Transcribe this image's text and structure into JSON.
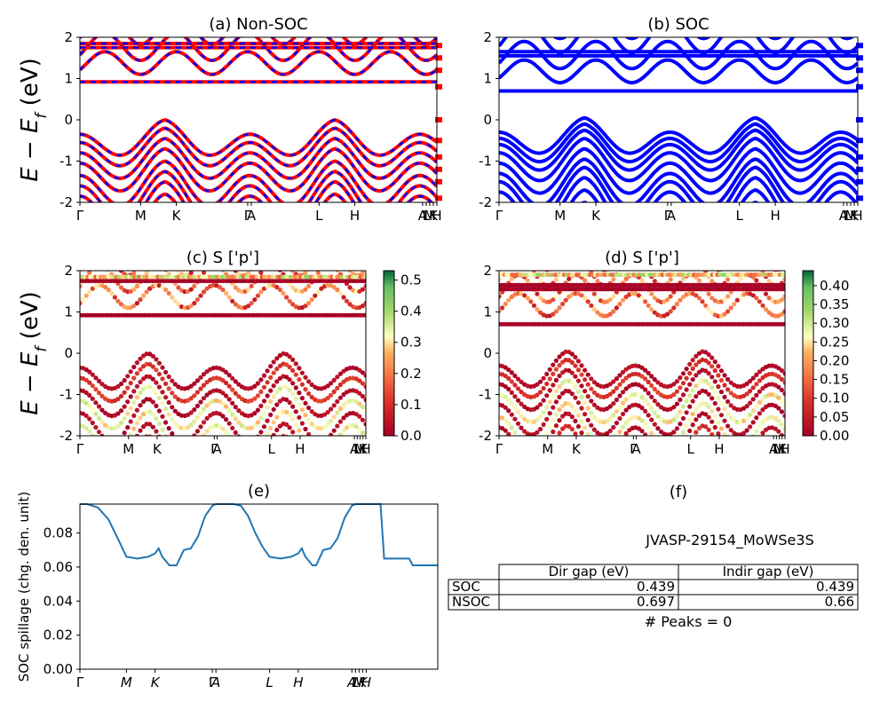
{
  "colors": {
    "nsoc": "#ff0000",
    "soc": "#0000ff",
    "dash": "#0000ff",
    "spill": "#1f77b4",
    "axis": "#000000",
    "frame": "#000000"
  },
  "chart_data": [
    {
      "id": "a",
      "type": "line",
      "title": "(a) Non-SOC",
      "ylabel": "E − E_f (eV)",
      "ylim": [
        -2,
        2
      ],
      "yticks": [
        -2,
        -1,
        0,
        1,
        2
      ],
      "kpath": [
        "Γ",
        "M",
        "K",
        "Γ",
        "A",
        "L",
        "H",
        "A",
        "L",
        "M",
        "K",
        "H"
      ],
      "kpos": [
        0.0,
        0.17,
        0.27,
        0.47,
        0.48,
        0.67,
        0.77,
        0.96,
        0.97,
        0.98,
        0.99,
        1.0
      ],
      "series": [
        {
          "values": []
        }
      ]
    },
    {
      "id": "b",
      "type": "line",
      "title": "(b) SOC",
      "ylim": [
        -2,
        2
      ],
      "yticks": [
        -2,
        -1,
        0,
        1,
        2
      ],
      "kpath": [
        "Γ",
        "M",
        "K",
        "Γ",
        "A",
        "L",
        "H",
        "A",
        "L",
        "M",
        "K",
        "H"
      ],
      "kpos": [
        0.0,
        0.17,
        0.27,
        0.47,
        0.48,
        0.67,
        0.77,
        0.96,
        0.97,
        0.98,
        0.99,
        1.0
      ],
      "series": [
        {
          "values": []
        }
      ]
    },
    {
      "id": "c",
      "type": "scatter",
      "title": "(c)  S ['p']",
      "ylabel": "E − E_f (eV)",
      "ylim": [
        -2,
        2
      ],
      "yticks": [
        -2,
        -1,
        0,
        1,
        2
      ],
      "colorbar": {
        "range": [
          0.0,
          0.53
        ],
        "ticks": [
          "0.0",
          "0.1",
          "0.2",
          "0.3",
          "0.4",
          "0.5"
        ],
        "tickvals": [
          0.0,
          0.1,
          0.2,
          0.3,
          0.4,
          0.5
        ]
      },
      "kpath": [
        "Γ",
        "M",
        "K",
        "Γ",
        "A",
        "L",
        "H",
        "A",
        "L",
        "M",
        "K",
        "H"
      ],
      "kpos": [
        0.0,
        0.17,
        0.27,
        0.47,
        0.48,
        0.67,
        0.77,
        0.96,
        0.97,
        0.98,
        0.99,
        1.0
      ]
    },
    {
      "id": "d",
      "type": "scatter",
      "title": "(d) S ['p']",
      "ylim": [
        -2,
        2
      ],
      "yticks": [
        -2,
        -1,
        0,
        1,
        2
      ],
      "colorbar": {
        "range": [
          0.0,
          0.44
        ],
        "ticks": [
          "0.00",
          "0.05",
          "0.10",
          "0.15",
          "0.20",
          "0.25",
          "0.30",
          "0.35",
          "0.40"
        ],
        "tickvals": [
          0.0,
          0.05,
          0.1,
          0.15,
          0.2,
          0.25,
          0.3,
          0.35,
          0.4
        ]
      },
      "kpath": [
        "Γ",
        "M",
        "K",
        "Γ",
        "A",
        "L",
        "H",
        "A",
        "L",
        "M",
        "K",
        "H"
      ],
      "kpos": [
        0.0,
        0.17,
        0.27,
        0.47,
        0.48,
        0.67,
        0.77,
        0.96,
        0.97,
        0.98,
        0.99,
        1.0
      ]
    },
    {
      "id": "e",
      "type": "line",
      "title": "(e)",
      "ylabel": "SOC spillage (chg. den. unit)",
      "ylim": [
        0.0,
        0.097
      ],
      "yticks": [
        0.0,
        0.02,
        0.04,
        0.06,
        0.08
      ],
      "yticklabels": [
        "0.00",
        "0.02",
        "0.04",
        "0.06",
        "0.08"
      ],
      "xticklabels": [
        "Γ",
        "M",
        "K",
        "Γ",
        "A",
        "L",
        "H",
        "A",
        "L",
        "M",
        "K",
        "H"
      ],
      "xtickpos": [
        0.0,
        0.13,
        0.21,
        0.37,
        0.38,
        0.53,
        0.61,
        0.76,
        0.77,
        0.78,
        0.79,
        0.8
      ],
      "x": [
        0.0,
        0.02,
        0.05,
        0.08,
        0.11,
        0.13,
        0.16,
        0.19,
        0.21,
        0.22,
        0.23,
        0.25,
        0.27,
        0.29,
        0.31,
        0.33,
        0.35,
        0.37,
        0.38,
        0.4,
        0.43,
        0.45,
        0.47,
        0.49,
        0.51,
        0.53,
        0.56,
        0.59,
        0.61,
        0.62,
        0.63,
        0.65,
        0.66,
        0.68,
        0.7,
        0.72,
        0.74,
        0.76,
        0.77,
        0.78,
        0.79,
        0.8,
        0.81,
        0.84,
        0.85,
        0.92,
        0.93,
        1.0
      ],
      "values": [
        0.097,
        0.097,
        0.095,
        0.088,
        0.075,
        0.066,
        0.065,
        0.066,
        0.068,
        0.071,
        0.066,
        0.061,
        0.061,
        0.07,
        0.071,
        0.078,
        0.09,
        0.096,
        0.097,
        0.097,
        0.097,
        0.096,
        0.09,
        0.08,
        0.072,
        0.066,
        0.065,
        0.066,
        0.068,
        0.071,
        0.066,
        0.061,
        0.061,
        0.07,
        0.071,
        0.077,
        0.089,
        0.096,
        0.097,
        0.097,
        0.097,
        0.097,
        0.097,
        0.097,
        0.065,
        0.065,
        0.061,
        0.061
      ],
      "x_italic": true
    },
    {
      "id": "f",
      "type": "table",
      "title": "(f)",
      "subtitle": "JVASP-29154_MoWSe3S",
      "columns": [
        "Dir gap (eV)",
        "Indir gap (eV)"
      ],
      "rows": [
        {
          "label": "SOC",
          "values": [
            "0.439",
            "0.439"
          ]
        },
        {
          "label": "NSOC",
          "values": [
            "0.697",
            "0.66"
          ]
        }
      ],
      "footer": "# Peaks = 0"
    }
  ]
}
